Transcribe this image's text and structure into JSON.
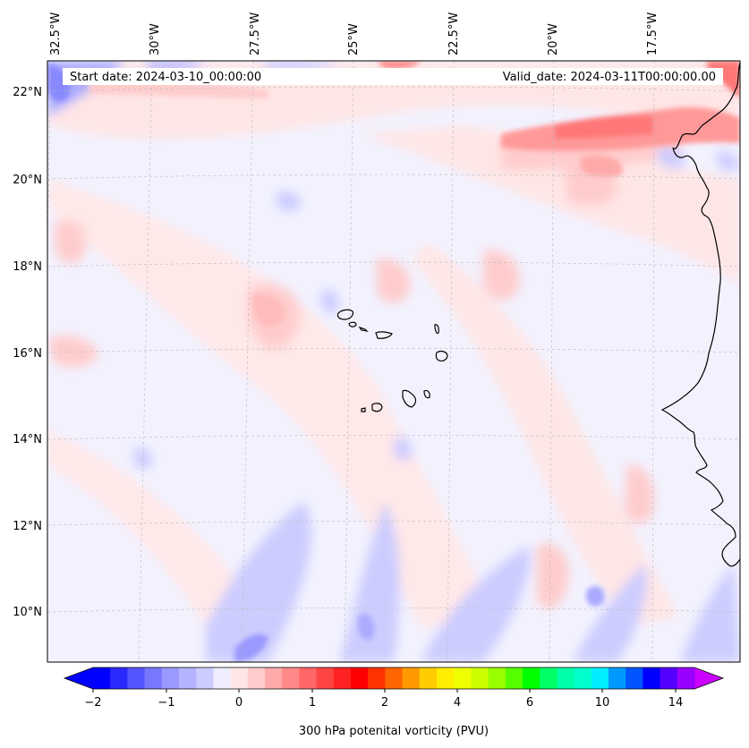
{
  "header": {
    "start_date": "Start date: 2024-03-10_00:00:00",
    "valid_date": "Valid_date: 2024-03-11T00:00:00.00"
  },
  "axes": {
    "lon_labels": [
      "32.5°W",
      "30°W",
      "27.5°W",
      "25°W",
      "22.5°W",
      "20°W",
      "17.5°W"
    ],
    "lat_labels": [
      "22°N",
      "20°N",
      "18°N",
      "16°N",
      "14°N",
      "12°N",
      "10°N"
    ]
  },
  "colorbar": {
    "title": "300 hPa potenital vorticity (PVU)",
    "tick_labels": [
      "−2",
      "−1",
      "0",
      "1",
      "2",
      "4",
      "6",
      "10",
      "14"
    ],
    "colors": [
      "#0000ff",
      "#2a2aff",
      "#5555ff",
      "#7878ff",
      "#9999ff",
      "#b3b3ff",
      "#ccccff",
      "#eeeeff",
      "#ffe6e6",
      "#ffcccc",
      "#ffaaaa",
      "#ff8888",
      "#ff6666",
      "#ff4444",
      "#ff2222",
      "#ff0000",
      "#ff3300",
      "#ff6600",
      "#ff9900",
      "#ffcc00",
      "#ffee00",
      "#eeff00",
      "#ccff00",
      "#99ff00",
      "#55ff00",
      "#00ff00",
      "#00ff66",
      "#00ffaa",
      "#00ffcc",
      "#00eeff",
      "#0099ff",
      "#0055ff",
      "#0000ff",
      "#5500ff",
      "#9900ff"
    ],
    "extend_low_color": "#0000ff",
    "extend_high_color": "#cc00ff"
  }
}
